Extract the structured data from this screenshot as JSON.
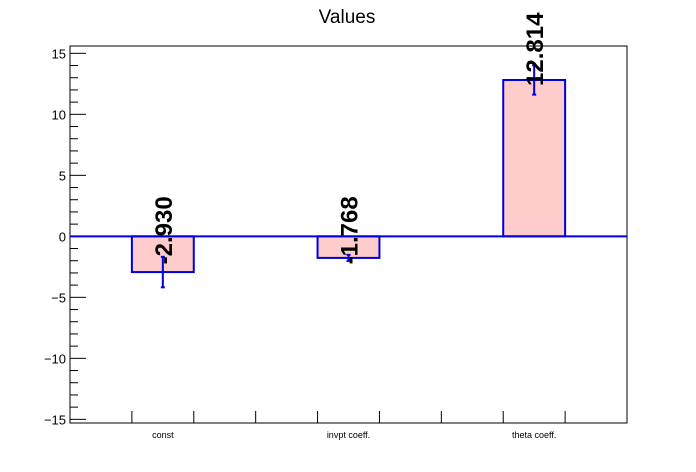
{
  "chart_data": {
    "type": "bar",
    "title": "Values",
    "categories": [
      "const",
      "invpt coeff.",
      "theta coeff."
    ],
    "values": [
      -2.93,
      -1.768,
      12.814
    ],
    "errors": [
      1.25,
      0.25,
      1.2
    ],
    "data_labels": [
      "-2.930",
      "-1.768",
      "12.814"
    ],
    "ylim": [
      -15.3,
      15.6
    ],
    "yticks": [
      -15,
      -10,
      -5,
      0,
      5,
      10,
      15
    ],
    "ytick_labels": [
      "−15",
      "−10",
      "−5",
      "0",
      "5",
      "10",
      "15"
    ],
    "xlabel": "",
    "ylabel": "",
    "grid": false,
    "bar_fill_color": "#ffcccc",
    "bar_edge_color": "#0000dd",
    "zero_line_color": "#0000dd"
  }
}
